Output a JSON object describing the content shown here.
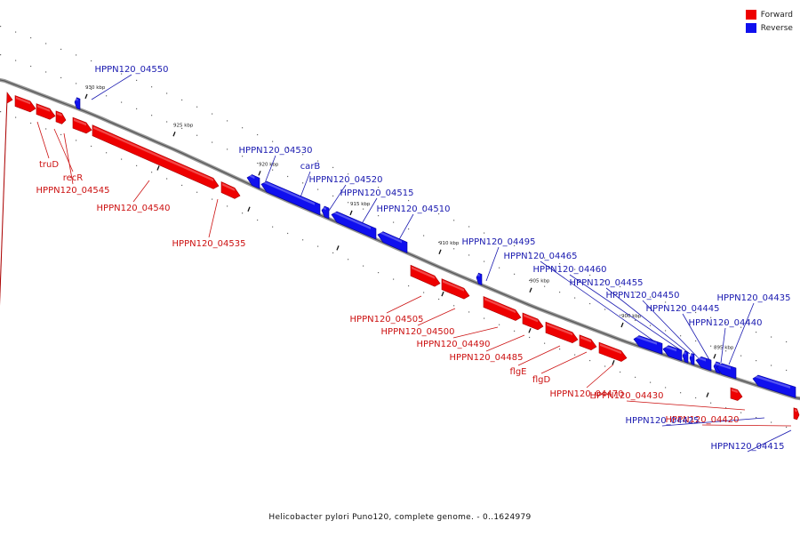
{
  "colors": {
    "forward": "#ee0000",
    "reverse": "#1010ee",
    "forward_label": "#cc1111",
    "reverse_label": "#1a1ab0",
    "backbone": "#888888"
  },
  "legend": [
    {
      "label": "Forward",
      "color": "#ee0000"
    },
    {
      "label": "Reverse",
      "color": "#1010ee"
    }
  ],
  "caption": {
    "organism": "Helicobacter pylori Puno120, complete genome.",
    "range": " - 0..1624979"
  },
  "ticks": [
    "930 kbp",
    "925 kbp",
    "920 kbp",
    "915 kbp",
    "910 kbp",
    "905 kbp",
    "900 kbp",
    "895 kbp"
  ],
  "genes_forward": [
    "truD",
    "recR",
    "HPPN120_04545",
    "HPPN120_04540",
    "HPPN120_04535",
    "HPPN120_04505",
    "HPPN120_04500",
    "HPPN120_04490",
    "HPPN120_04485",
    "flgE",
    "flgD",
    "HPPN120_04470",
    "HPPN120_04430",
    "HPPN120_04420"
  ],
  "genes_reverse": [
    "HPPN120_04550",
    "HPPN120_04530",
    "carB",
    "HPPN120_04520",
    "HPPN120_04515",
    "HPPN120_04510",
    "HPPN120_04495",
    "HPPN120_04465",
    "HPPN120_04460",
    "HPPN120_04455",
    "HPPN120_04450",
    "HPPN120_04445",
    "HPPN120_04440",
    "HPPN120_04435",
    "HPPN120_04425",
    "HPPN120_04415"
  ]
}
